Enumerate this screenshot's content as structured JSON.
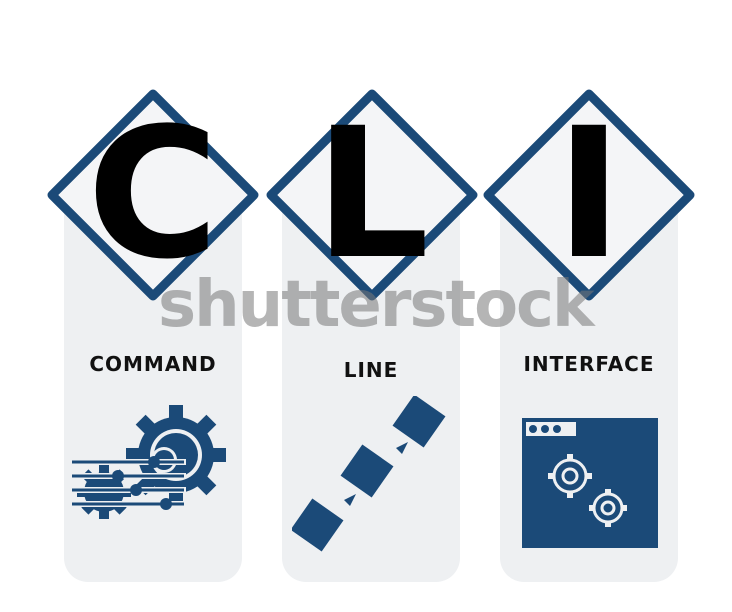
{
  "letters": [
    "C",
    "L",
    "I"
  ],
  "captions": [
    "COMMAND",
    "LINE",
    "INTERFACE"
  ],
  "watermark": "shutterstock",
  "colors": {
    "navy": "#1b4a78",
    "panel": "#eef0f2",
    "diamond_fill": "#f4f5f7",
    "letter": "#000000"
  },
  "icons": [
    "gears-with-controls-icon",
    "pipeline-steps-icon",
    "window-with-gears-icon"
  ]
}
